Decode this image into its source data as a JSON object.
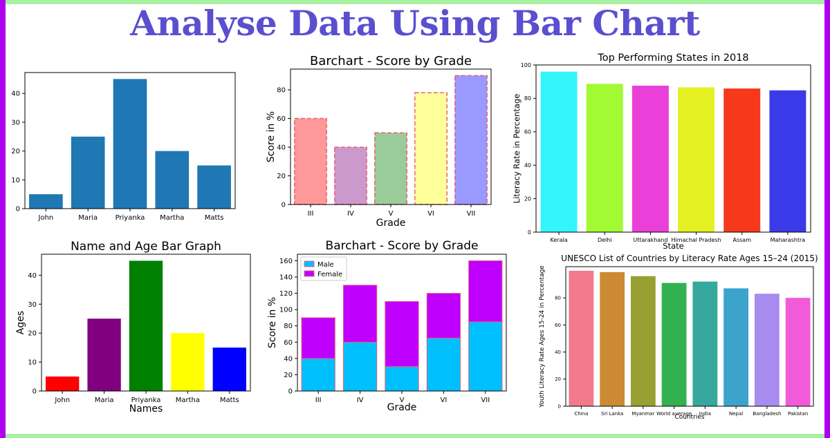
{
  "page": {
    "title": "Analyse Data Using Bar Chart"
  },
  "chart_data": [
    {
      "type": "bar",
      "title": "",
      "xlabel": "",
      "ylabel": "",
      "categories": [
        "John",
        "Maria",
        "Priyanka",
        "Martha",
        "Matts"
      ],
      "values": [
        5,
        25,
        45,
        20,
        15
      ],
      "ylim": [
        0,
        47.25
      ],
      "yticks": [
        0,
        10,
        20,
        30,
        40
      ],
      "colors": [
        "#1f77b4"
      ],
      "grid": false
    },
    {
      "type": "bar",
      "title": "Barchart - Score by Grade",
      "xlabel": "Grade",
      "ylabel": "Score in %",
      "categories": [
        "III",
        "IV",
        "V",
        "VI",
        "VII"
      ],
      "values": [
        60,
        40,
        50,
        78,
        90
      ],
      "ylim": [
        0,
        94.5
      ],
      "yticks": [
        0,
        20,
        40,
        60,
        80
      ],
      "colors": [
        "#ff9999",
        "#cc99cc",
        "#99cc99",
        "#ffff99",
        "#9999ff"
      ],
      "edgecolor": "#e8607a",
      "edgestyle": "dashed",
      "grid": false
    },
    {
      "type": "bar",
      "title": "Top Performing States in 2018",
      "xlabel": "State",
      "ylabel": "Literacy Rate in Percentage",
      "categories": [
        "Kerala",
        "Delhi",
        "Uttarakhand",
        "Himachal Pradesh",
        "Assam",
        "Maharashtra"
      ],
      "values": [
        96,
        88.7,
        87.6,
        86.6,
        85.9,
        84.8
      ],
      "ylim": [
        0,
        100
      ],
      "yticks": [
        0,
        20,
        40,
        60,
        80,
        100
      ],
      "colors": [
        "#33f5fa",
        "#a2fa33",
        "#ea3fd8",
        "#e5f022",
        "#f5391a",
        "#3b3ae8"
      ],
      "grid": false
    },
    {
      "type": "bar",
      "title": "Name and Age Bar Graph",
      "xlabel": "Names",
      "ylabel": "Ages",
      "categories": [
        "John",
        "Maria",
        "Priyanka",
        "Martha",
        "Matts"
      ],
      "values": [
        5,
        25,
        45,
        20,
        15
      ],
      "ylim": [
        0,
        47.25
      ],
      "yticks": [
        0,
        10,
        20,
        30,
        40
      ],
      "colors": [
        "#ff0000",
        "#800080",
        "#008000",
        "#ffff00",
        "#0000ff"
      ],
      "grid": false
    },
    {
      "type": "bar",
      "stacked": true,
      "title": "Barchart - Score by Grade",
      "xlabel": "Grade",
      "ylabel": "Score in %",
      "categories": [
        "III",
        "IV",
        "V",
        "VI",
        "VII"
      ],
      "series": [
        {
          "name": "Male",
          "values": [
            40,
            60,
            30,
            65,
            85
          ],
          "color": "#00bfff"
        },
        {
          "name": "Female",
          "values": [
            50,
            70,
            80,
            55,
            75
          ],
          "color": "#bf00ff"
        }
      ],
      "edgecolor": "#e8607a",
      "ylim": [
        0,
        168
      ],
      "yticks": [
        0,
        20,
        40,
        60,
        80,
        100,
        120,
        140,
        160
      ],
      "legend": "upper-left",
      "grid": false
    },
    {
      "type": "bar",
      "title": "UNESCO List of Countries by Literacy Rate Ages 15–24 (2015)",
      "xlabel": "Countries",
      "ylabel": "Youth Literacy Rate Ages 15-24 in Percentage",
      "categories": [
        "China",
        "Sri Lanka",
        "Myanmar",
        "World average",
        "India",
        "Nepal",
        "Bangladesh",
        "Pakistan"
      ],
      "values": [
        100,
        99,
        96,
        91,
        92,
        87,
        83,
        80
      ],
      "ylim": [
        0,
        103
      ],
      "yticks": [
        0,
        20,
        40,
        60,
        80
      ],
      "colors": [
        "#f27a8c",
        "#cc8a35",
        "#98a031",
        "#33b050",
        "#36a89e",
        "#3ba3cc",
        "#a88bef",
        "#f25bd8"
      ],
      "grid": false
    }
  ]
}
